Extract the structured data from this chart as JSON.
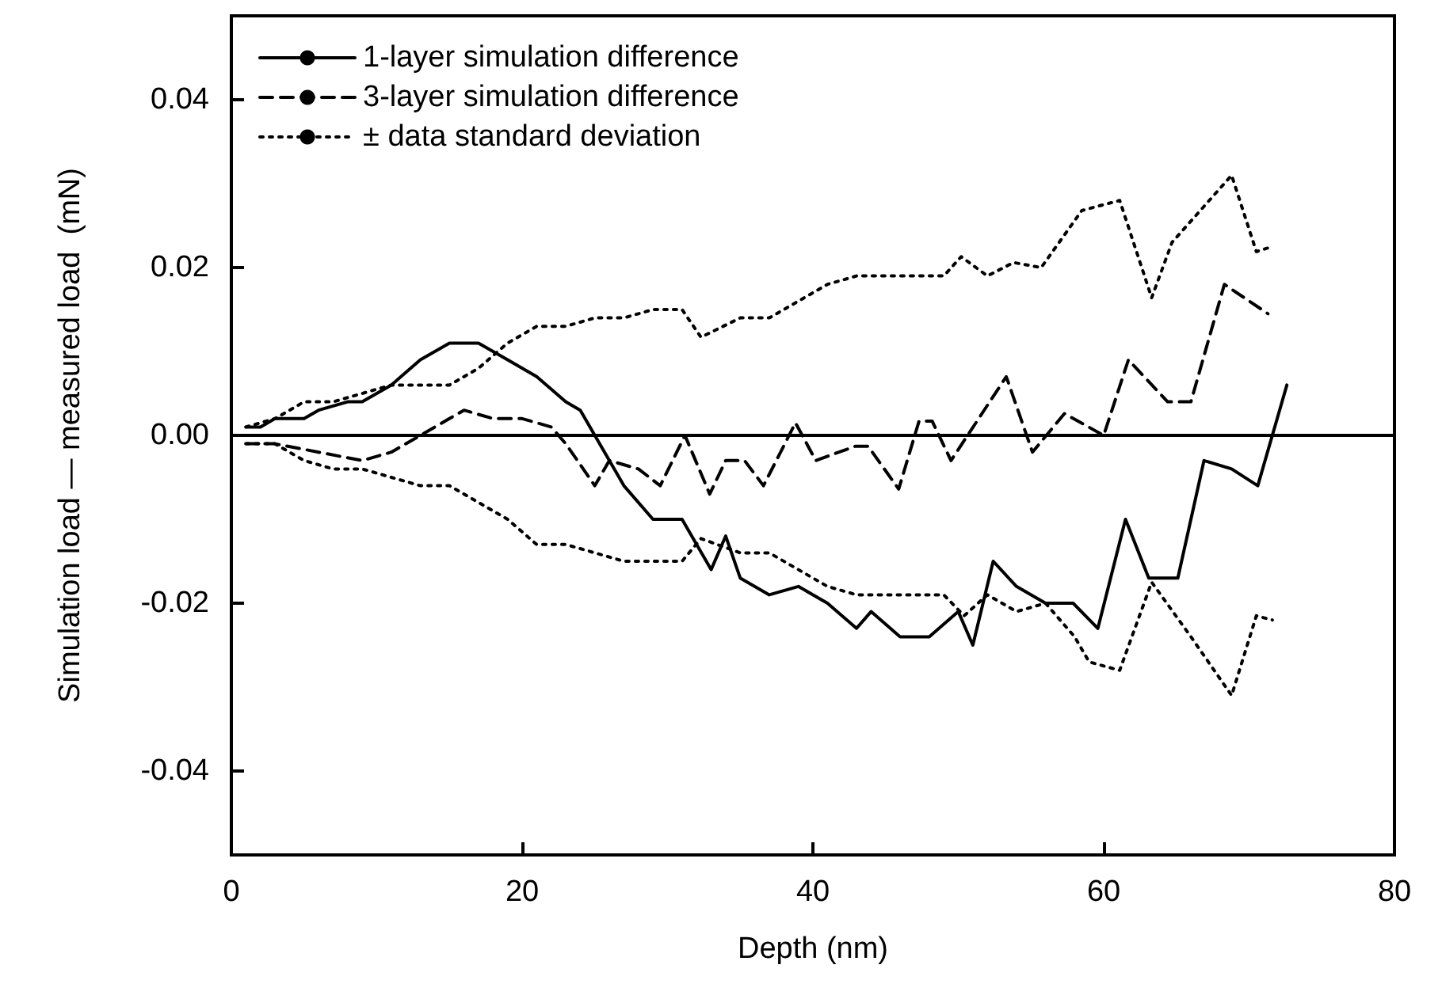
{
  "chart_data": {
    "type": "line",
    "xlabel": "Depth (nm)",
    "ylabel": "Simulation load — measured load  (mN)",
    "xlim": [
      0,
      80
    ],
    "xticks": [
      0,
      20,
      40,
      60,
      80
    ],
    "ylim": [
      -0.05,
      0.05
    ],
    "yticks": [
      -0.04,
      -0.02,
      {
        "value": 0,
        "label": "0.00"
      },
      0.02,
      0.04
    ],
    "grid": false,
    "legend": "top left",
    "marker": "none",
    "ref_lines": [
      {
        "axis": "y",
        "value": 0,
        "color": "#000000",
        "line_style": "solid"
      }
    ],
    "series": [
      {
        "name": "1-layer simulation difference",
        "color": "#000000",
        "line_style": "solid",
        "x": [
          1,
          2,
          3,
          5,
          6,
          8,
          9,
          11,
          13,
          15,
          17,
          19,
          21,
          23,
          24,
          25,
          27,
          29,
          31,
          33,
          34,
          35,
          37,
          39,
          41,
          43,
          44,
          46,
          48,
          50,
          51,
          52.4,
          54,
          56,
          57.9,
          59.6,
          61.5,
          63.1,
          65.1,
          66.9,
          68.8,
          70.6,
          72.6
        ],
        "values": [
          0.001,
          0.001,
          0.002,
          0.002,
          0.003,
          0.004,
          0.004,
          0.006,
          0.009,
          0.011,
          0.011,
          0.009,
          0.007,
          0.004,
          0.003,
          0.0,
          -0.006,
          -0.01,
          -0.01,
          -0.016,
          -0.012,
          -0.017,
          -0.019,
          -0.018,
          -0.02,
          -0.023,
          -0.021,
          -0.024,
          -0.024,
          -0.021,
          -0.025,
          -0.015,
          -0.018,
          -0.02,
          -0.02,
          -0.023,
          -0.01,
          -0.017,
          -0.017,
          -0.003,
          -0.004,
          -0.006,
          0.006
        ]
      },
      {
        "name": "3-layer simulation difference",
        "color": "#000000",
        "line_style": "dashed",
        "x": [
          1,
          3,
          6,
          9,
          11,
          13,
          15,
          16,
          18,
          20,
          22,
          23,
          25,
          26,
          28,
          29.5,
          31.2,
          32.9,
          34,
          35.3,
          36.6,
          38.8,
          40.2,
          42.9,
          43.8,
          45.9,
          47.3,
          48.2,
          49.5,
          53.3,
          55.1,
          57.3,
          60,
          61.7,
          64.4,
          66,
          68.3,
          71.3
        ],
        "values": [
          -0.001,
          -0.001,
          -0.002,
          -0.003,
          -0.002,
          0.0,
          0.002,
          0.003,
          0.002,
          0.002,
          0.001,
          -0.001,
          -0.006,
          -0.003,
          -0.004,
          -0.006,
          0.0,
          -0.007,
          -0.003,
          -0.003,
          -0.006,
          0.0015,
          -0.003,
          -0.0013,
          -0.0013,
          -0.0064,
          0.0017,
          0.0017,
          -0.003,
          0.007,
          -0.002,
          0.0026,
          0.0,
          0.009,
          0.004,
          0.004,
          0.018,
          0.0145
        ]
      },
      {
        "name": "± data standard deviation",
        "color": "#000000",
        "line_style": "dotted",
        "x": [
          1,
          3,
          5,
          7,
          9,
          11,
          13,
          15,
          17,
          19,
          21,
          23,
          25,
          27,
          29,
          31,
          32.3,
          35,
          37,
          39,
          41,
          43,
          45,
          47,
          49,
          50.2,
          52,
          53.8,
          55.7,
          58.5,
          61.1,
          63.3,
          64.7,
          68.8,
          70.5,
          71.6
        ],
        "values": [
          0.001,
          0.002,
          0.004,
          0.004,
          0.005,
          0.006,
          0.006,
          0.006,
          0.008,
          0.011,
          0.013,
          0.013,
          0.014,
          0.014,
          0.015,
          0.015,
          0.0117,
          0.014,
          0.014,
          0.016,
          0.018,
          0.019,
          0.019,
          0.019,
          0.019,
          0.0213,
          0.019,
          0.0206,
          0.02,
          0.0268,
          0.028,
          0.0164,
          0.023,
          0.031,
          0.0219,
          0.0225
        ]
      },
      {
        "color": "#000000",
        "line_style": "dotted",
        "x": [
          1,
          3,
          5,
          7,
          9,
          11,
          13,
          15,
          17,
          19,
          21,
          23,
          25,
          27,
          29,
          31,
          32.3,
          35,
          37,
          39,
          41,
          43,
          45,
          47,
          49,
          50.4,
          52,
          54,
          56,
          58,
          59,
          61.1,
          63.3,
          66,
          68.8,
          70.5,
          71.6
        ],
        "values": [
          -0.001,
          -0.001,
          -0.003,
          -0.004,
          -0.004,
          -0.005,
          -0.006,
          -0.006,
          -0.008,
          -0.01,
          -0.013,
          -0.013,
          -0.014,
          -0.015,
          -0.015,
          -0.015,
          -0.0123,
          -0.014,
          -0.014,
          -0.016,
          -0.018,
          -0.019,
          -0.019,
          -0.019,
          -0.019,
          -0.0215,
          -0.019,
          -0.021,
          -0.02,
          -0.024,
          -0.027,
          -0.028,
          -0.0175,
          -0.024,
          -0.031,
          -0.0215,
          -0.022
        ]
      }
    ]
  }
}
